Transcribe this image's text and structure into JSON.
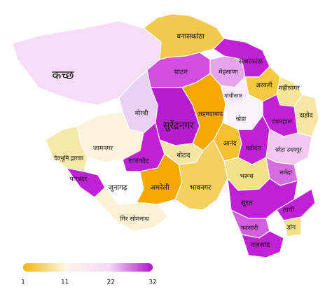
{
  "map": {
    "districts": [
      {
        "label": "कच्छ",
        "color": "#f6dcf6"
      },
      {
        "label": "बनासकांठा",
        "color": "#f2c94c"
      },
      {
        "label": "पाटन",
        "color": "#d04ee0"
      },
      {
        "label": "मेहसाणा",
        "color": "#e6a4ef"
      },
      {
        "label": "साबरकांठा",
        "color": "#c020d6"
      },
      {
        "label": "अरवली",
        "color": "#f5c842"
      },
      {
        "label": "गांधीनगर",
        "color": "#fbeafb"
      },
      {
        "label": "अहमदाबाद",
        "color": "#f5a800"
      },
      {
        "label": "महीसागर",
        "color": "#f8e49a"
      },
      {
        "label": "दाहोद",
        "color": "#f7e6a3"
      },
      {
        "label": "पंचमहाल",
        "color": "#c020d6"
      },
      {
        "label": "खेडा",
        "color": "#fcf2fc"
      },
      {
        "label": "आनंद",
        "color": "#f5c030"
      },
      {
        "label": "वडोदरा",
        "color": "#c020d6"
      },
      {
        "label": "छोटा उदयपुर",
        "color": "#f2c8f2"
      },
      {
        "label": "नर्मदा",
        "color": "#d66ee0"
      },
      {
        "label": "भरूच",
        "color": "#f5e08a"
      },
      {
        "label": "सुरेंद्रनगर",
        "color": "#b51cd0"
      },
      {
        "label": "मोरबी",
        "color": "#ead0f2"
      },
      {
        "label": "जामनगर",
        "color": "#fbf3dc"
      },
      {
        "label": "देवभूमि द्वारका",
        "color": "#f6e8a8"
      },
      {
        "label": "राजकोट",
        "color": "#c020d6"
      },
      {
        "label": "बोटाद",
        "color": "#f5e5a5"
      },
      {
        "label": "पोरबंदर",
        "color": "#c020d6"
      },
      {
        "label": "जूनागढ़",
        "color": "#ffffff"
      },
      {
        "label": "अमरेली",
        "color": "#f5a800"
      },
      {
        "label": "भावनगर",
        "color": "#f5cf60"
      },
      {
        "label": "गिर सोमनाथ",
        "color": "#fbf2d6"
      },
      {
        "label": "सूरत",
        "color": "#c020d6"
      },
      {
        "label": "तापी",
        "color": "#c020d6"
      },
      {
        "label": "नवसारी",
        "color": "#d45ee0"
      },
      {
        "label": "डांग",
        "color": "#f5e08a"
      },
      {
        "label": "वलसाड",
        "color": "#c020d6"
      }
    ],
    "colorbar": {
      "lim": [
        1,
        32
      ],
      "ticks": [
        1,
        11,
        22,
        32
      ],
      "colors": [
        "#f2b800",
        "#fdf6e8",
        "#f6d8f6",
        "#b010cc"
      ]
    }
  }
}
